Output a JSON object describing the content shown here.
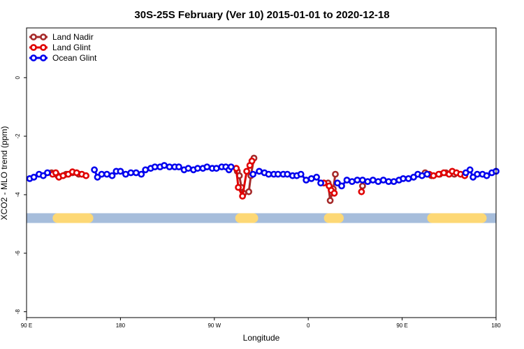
{
  "chart_data": {
    "type": "line",
    "title": "30S-25S February (Ver 10)   2015-01-01 to 2020-12-18",
    "xlabel": "Longitude",
    "ylabel": "XCO2 - MLO trend (ppm)",
    "x_axis": {
      "range_deg": [
        90,
        540
      ],
      "ticks": [
        {
          "value": 90,
          "label": "90 E"
        },
        {
          "value": 180,
          "label": "180"
        },
        {
          "value": 270,
          "label": "90 W"
        },
        {
          "value": 360,
          "label": "0"
        },
        {
          "value": 450,
          "label": "90 E"
        },
        {
          "value": 540,
          "label": "180"
        }
      ]
    },
    "y_axis": {
      "range": [
        -8.2,
        1.7
      ],
      "ticks": [
        {
          "value": 0,
          "label": "0"
        },
        {
          "value": -2,
          "label": "-2"
        },
        {
          "value": -4,
          "label": "-4"
        },
        {
          "value": -6,
          "label": "-6"
        },
        {
          "value": -8,
          "label": "-8"
        }
      ]
    },
    "land_ocean_bar": {
      "y_value": -4.8,
      "ocean_color": "#a6bddb",
      "land_color": "#fdd875",
      "land_segments": [
        [
          115,
          154
        ],
        [
          290,
          312
        ],
        [
          375,
          394
        ],
        [
          474,
          531
        ]
      ]
    },
    "legend": {
      "position": "top-left",
      "entries": [
        "Land Nadir",
        "Land Glint",
        "Ocean Glint"
      ]
    },
    "series": [
      {
        "name": "Land Nadir",
        "color": "#a52a2a",
        "segments": [
          [
            [
              114,
              -3.25
            ],
            [
              120,
              -3.35
            ],
            [
              128,
              -3.3
            ],
            [
              134,
              -3.25
            ],
            [
              140,
              -3.3
            ]
          ],
          [
            [
              292,
              -3.2
            ],
            [
              294,
              -3.35
            ],
            [
              296,
              -3.75
            ],
            [
              298,
              -3.95
            ],
            [
              303,
              -3.9
            ],
            [
              305,
              -3.35
            ],
            [
              308,
              -2.75
            ]
          ],
          [
            [
              379,
              -3.6
            ],
            [
              381,
              -4.2
            ],
            [
              384,
              -3.8
            ],
            [
              386,
              -3.3
            ]
          ],
          [
            [
              412,
              -3.7
            ]
          ],
          [
            [
              472,
              -3.25
            ],
            [
              478,
              -3.35
            ],
            [
              486,
              -3.3
            ],
            [
              492,
              -3.25
            ],
            [
              500,
              -3.3
            ]
          ]
        ]
      },
      {
        "name": "Land Glint",
        "color": "#e00000",
        "segments": [
          [
            [
              115,
              -3.3
            ],
            [
              118,
              -3.25
            ],
            [
              121,
              -3.4
            ],
            [
              125,
              -3.35
            ],
            [
              130,
              -3.3
            ],
            [
              134,
              -3.22
            ],
            [
              138,
              -3.25
            ],
            [
              143,
              -3.3
            ],
            [
              147,
              -3.35
            ]
          ],
          [
            [
              291,
              -3.1
            ],
            [
              293,
              -3.75
            ],
            [
              297,
              -4.05
            ],
            [
              301,
              -3.2
            ],
            [
              304,
              -3.0
            ],
            [
              306,
              -2.85
            ]
          ],
          [
            [
              375,
              -3.6
            ],
            [
              380,
              -3.7
            ],
            [
              382,
              -3.85
            ],
            [
              385,
              -3.95
            ]
          ],
          [
            [
              411,
              -3.9
            ]
          ],
          [
            [
              476,
              -3.3
            ],
            [
              480,
              -3.35
            ],
            [
              485,
              -3.3
            ],
            [
              490,
              -3.25
            ],
            [
              495,
              -3.3
            ],
            [
              498,
              -3.2
            ],
            [
              502,
              -3.25
            ],
            [
              506,
              -3.3
            ],
            [
              510,
              -3.35
            ]
          ]
        ]
      },
      {
        "name": "Ocean Glint",
        "color": "#0000ee",
        "segments": [
          [
            [
              93,
              -3.45
            ],
            [
              97,
              -3.4
            ],
            [
              102,
              -3.3
            ],
            [
              106,
              -3.35
            ],
            [
              110,
              -3.25
            ]
          ],
          [
            [
              155,
              -3.15
            ],
            [
              158,
              -3.4
            ],
            [
              162,
              -3.3
            ],
            [
              167,
              -3.3
            ],
            [
              172,
              -3.35
            ],
            [
              176,
              -3.2
            ],
            [
              180,
              -3.2
            ],
            [
              185,
              -3.3
            ],
            [
              190,
              -3.25
            ],
            [
              195,
              -3.25
            ],
            [
              200,
              -3.3
            ],
            [
              204,
              -3.15
            ],
            [
              209,
              -3.1
            ],
            [
              213,
              -3.05
            ],
            [
              218,
              -3.05
            ],
            [
              222,
              -3.0
            ],
            [
              227,
              -3.05
            ],
            [
              232,
              -3.05
            ],
            [
              236,
              -3.05
            ],
            [
              241,
              -3.15
            ],
            [
              245,
              -3.1
            ],
            [
              250,
              -3.15
            ],
            [
              254,
              -3.1
            ],
            [
              259,
              -3.1
            ],
            [
              263,
              -3.05
            ],
            [
              268,
              -3.1
            ],
            [
              272,
              -3.1
            ],
            [
              277,
              -3.05
            ],
            [
              281,
              -3.05
            ],
            [
              284,
              -3.15
            ],
            [
              286,
              -3.05
            ]
          ],
          [
            [
              307,
              -3.3
            ],
            [
              313,
              -3.2
            ],
            [
              318,
              -3.25
            ],
            [
              322,
              -3.3
            ],
            [
              327,
              -3.3
            ],
            [
              331,
              -3.3
            ],
            [
              336,
              -3.3
            ],
            [
              340,
              -3.3
            ],
            [
              345,
              -3.35
            ],
            [
              349,
              -3.35
            ],
            [
              353,
              -3.3
            ],
            [
              358,
              -3.5
            ],
            [
              363,
              -3.45
            ],
            [
              368,
              -3.4
            ],
            [
              372,
              -3.6
            ]
          ],
          [
            [
              388,
              -3.6
            ],
            [
              392,
              -3.7
            ],
            [
              397,
              -3.5
            ],
            [
              402,
              -3.55
            ],
            [
              407,
              -3.5
            ],
            [
              412,
              -3.5
            ],
            [
              417,
              -3.55
            ],
            [
              422,
              -3.5
            ],
            [
              427,
              -3.55
            ],
            [
              432,
              -3.5
            ],
            [
              437,
              -3.55
            ],
            [
              442,
              -3.55
            ],
            [
              447,
              -3.5
            ],
            [
              451,
              -3.45
            ],
            [
              456,
              -3.45
            ],
            [
              461,
              -3.4
            ],
            [
              465,
              -3.3
            ],
            [
              469,
              -3.35
            ],
            [
              474,
              -3.3
            ]
          ],
          [
            [
              511,
              -3.25
            ],
            [
              515,
              -3.15
            ],
            [
              518,
              -3.4
            ],
            [
              522,
              -3.3
            ],
            [
              527,
              -3.3
            ],
            [
              531,
              -3.35
            ],
            [
              536,
              -3.25
            ],
            [
              540,
              -3.2
            ]
          ]
        ]
      }
    ]
  }
}
